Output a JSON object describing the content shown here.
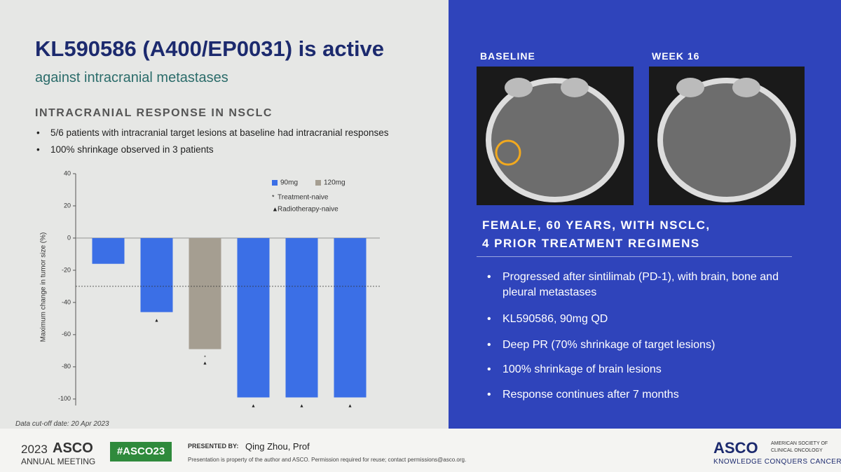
{
  "slide": {
    "title": "KL590586 (A400/EP0031) is active",
    "subtitle": "against intracranial metastases",
    "section": "INTRACRANIAL RESPONSE IN NSCLC",
    "bullets": [
      "5/6 patients with intracranial target lesions at baseline had intracranial responses",
      "100% shrinkage observed in 3 patients"
    ],
    "cutoff": "Data cut-off date: 20 Apr 2023"
  },
  "chart_data": {
    "type": "bar",
    "y_label": "Maximum change in tumor size (%)",
    "categories": [
      null,
      null,
      null,
      null,
      null,
      null
    ],
    "series": [
      {
        "name": "90mg",
        "color": "#3b6fe6",
        "values": [
          -16,
          -46,
          null,
          -99,
          -99,
          -99
        ]
      },
      {
        "name": "120mg",
        "color": "#a59e91",
        "values": [
          null,
          null,
          -69,
          null,
          null,
          null
        ]
      }
    ],
    "marker_legend": [
      {
        "symbol": "*",
        "label": "Treatment-naive"
      },
      {
        "symbol": "▲",
        "label": "Radiotherapy-naive"
      }
    ],
    "bar_markers": [
      [],
      [
        "▲"
      ],
      [
        "*",
        "▲"
      ],
      [
        "▲"
      ],
      [
        "▲"
      ],
      [
        "▲"
      ]
    ],
    "reference_line": -30,
    "ylim": [
      -104,
      40
    ],
    "yticks": [
      40,
      20,
      0,
      -20,
      -40,
      -60,
      -80,
      -100
    ]
  },
  "case": {
    "image_labels": [
      "BASELINE",
      "WEEK 16"
    ],
    "heading": [
      "FEMALE, 60 YEARS, WITH NSCLC,",
      "4 PRIOR TREATMENT REGIMENS"
    ],
    "bullets": [
      "Progressed after sintilimab (PD-1), with brain, bone and pleural metastases",
      "KL590586, 90mg QD",
      "Deep PR (70% shrinkage of target lesions)",
      "100% shrinkage of brain lesions",
      "Response continues after 7 months"
    ]
  },
  "footer": {
    "year": "2023",
    "brand": "ASCO",
    "meeting": "ANNUAL MEETING",
    "hashtag": "#ASCO23",
    "presented_by": "PRESENTED BY:",
    "presenter": "Qing Zhou, Prof",
    "notice": "Presentation is property of the author and ASCO. Permission required for reuse; contact permissions@asco.org.",
    "org": "ASCO",
    "org_name": [
      "AMERICAN SOCIETY OF",
      "CLINICAL ONCOLOGY"
    ],
    "tagline": "KNOWLEDGE CONQUERS CANCER"
  }
}
